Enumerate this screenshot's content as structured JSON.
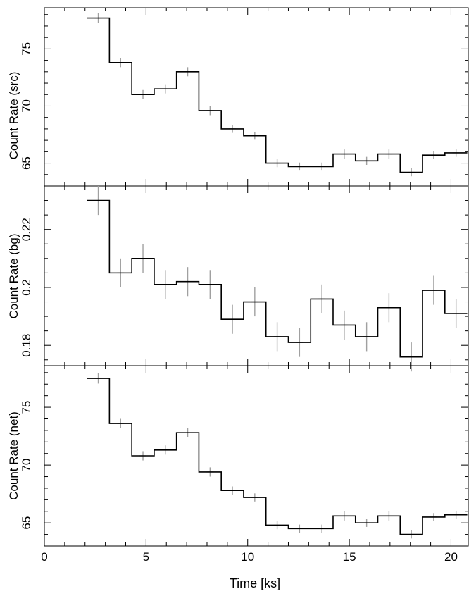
{
  "chart_data": [
    {
      "type": "line",
      "ylabel": "Count Rate (src)",
      "ylim": [
        63.0,
        78.6
      ],
      "yticks_major": [
        65,
        70,
        75
      ],
      "yticks_minor": [
        64,
        66,
        67,
        68,
        69,
        71,
        72,
        73,
        74,
        76,
        77,
        78
      ],
      "bin_edges": [
        2.1,
        3.2,
        4.3,
        5.4,
        6.5,
        7.6,
        8.7,
        9.8,
        10.9,
        12.0,
        13.1,
        14.2,
        15.3,
        16.4,
        17.5,
        18.6,
        19.7,
        20.8
      ],
      "values": [
        77.7,
        73.8,
        71.0,
        71.5,
        73.0,
        69.6,
        68.0,
        67.4,
        65.0,
        64.7,
        64.7,
        65.8,
        65.2,
        65.8,
        64.2,
        65.7,
        65.9
      ],
      "errors": [
        0.45,
        0.4,
        0.4,
        0.4,
        0.4,
        0.4,
        0.35,
        0.35,
        0.35,
        0.35,
        0.35,
        0.4,
        0.35,
        0.4,
        0.35,
        0.35,
        0.35
      ]
    },
    {
      "type": "line",
      "ylabel": "Count Rate (bg)",
      "ylim": [
        0.173,
        0.235
      ],
      "yticks_major": [
        0.18,
        0.2,
        0.22
      ],
      "yticks_major_labels": [
        "0.18",
        "0.2",
        "0.22"
      ],
      "yticks_minor": [
        0.175,
        0.185,
        0.19,
        0.195,
        0.205,
        0.21,
        0.215,
        0.225,
        0.23
      ],
      "bin_edges": [
        2.1,
        3.2,
        4.3,
        5.4,
        6.5,
        7.6,
        8.7,
        9.8,
        10.9,
        12.0,
        13.1,
        14.2,
        15.3,
        16.4,
        17.5,
        18.6,
        19.7,
        20.8
      ],
      "values": [
        0.23,
        0.205,
        0.21,
        0.201,
        0.202,
        0.201,
        0.189,
        0.195,
        0.183,
        0.181,
        0.196,
        0.187,
        0.183,
        0.193,
        0.176,
        0.199,
        0.191
      ],
      "errors": [
        0.005,
        0.005,
        0.005,
        0.005,
        0.005,
        0.005,
        0.005,
        0.005,
        0.005,
        0.005,
        0.005,
        0.005,
        0.005,
        0.005,
        0.005,
        0.005,
        0.005
      ]
    },
    {
      "type": "line",
      "ylabel": "Count Rate (net)",
      "ylim": [
        63.0,
        78.6
      ],
      "yticks_major": [
        65,
        70,
        75
      ],
      "yticks_minor": [
        64,
        66,
        67,
        68,
        69,
        71,
        72,
        73,
        74,
        76,
        77,
        78
      ],
      "bin_edges": [
        2.1,
        3.2,
        4.3,
        5.4,
        6.5,
        7.6,
        8.7,
        9.8,
        10.9,
        12.0,
        13.1,
        14.2,
        15.3,
        16.4,
        17.5,
        18.6,
        19.7,
        20.8
      ],
      "values": [
        77.5,
        73.6,
        70.8,
        71.3,
        72.8,
        69.4,
        67.8,
        67.2,
        64.8,
        64.5,
        64.5,
        65.6,
        65.0,
        65.6,
        64.0,
        65.5,
        65.7
      ],
      "errors": [
        0.45,
        0.4,
        0.4,
        0.4,
        0.4,
        0.4,
        0.35,
        0.35,
        0.35,
        0.35,
        0.35,
        0.4,
        0.35,
        0.4,
        0.35,
        0.35,
        0.35
      ]
    }
  ],
  "x_axis": {
    "label": "Time [ks]",
    "range": [
      0,
      20.85
    ],
    "major_ticks": [
      0,
      5,
      10,
      15,
      20
    ],
    "minor_ticks": [
      1,
      2,
      3,
      4,
      6,
      7,
      8,
      9,
      11,
      12,
      13,
      14,
      16,
      17,
      18,
      19
    ]
  },
  "colors": {
    "step_line": "#000000",
    "error_bars": "#a0a0a0",
    "axes": "#000000",
    "background": "#ffffff"
  }
}
